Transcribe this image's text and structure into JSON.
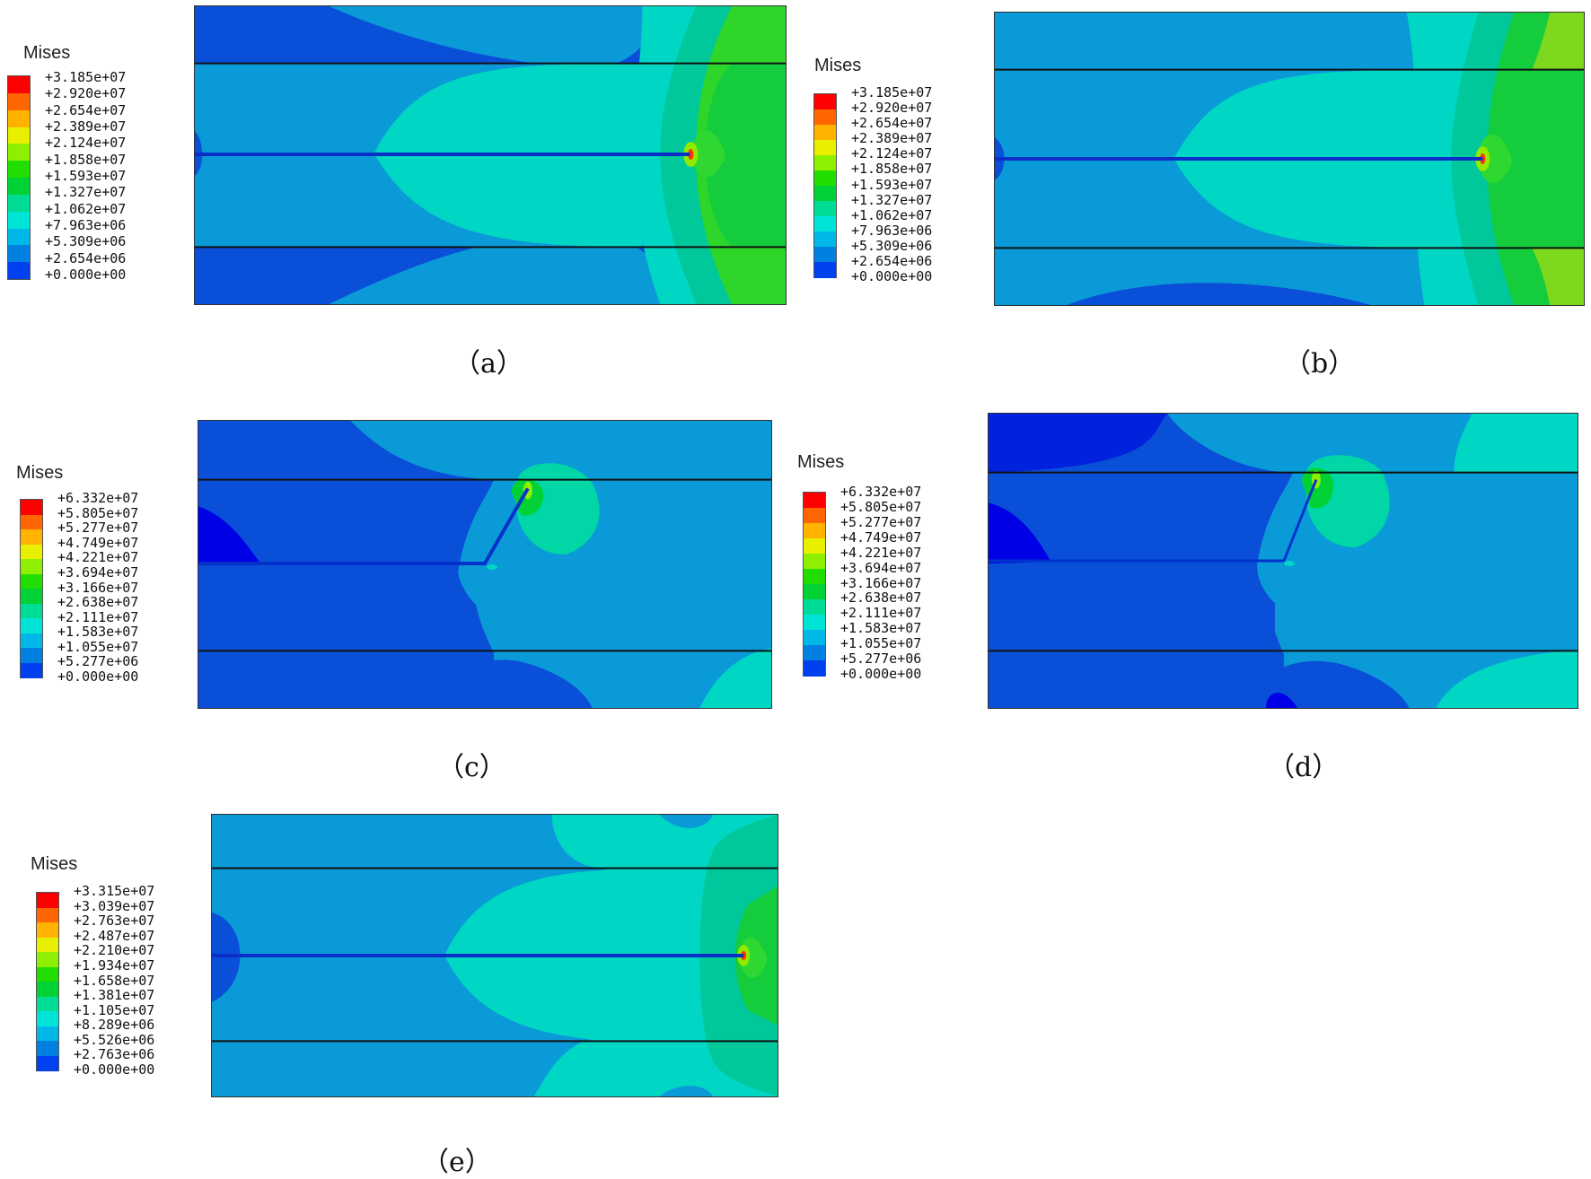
{
  "legend_colors": [
    "#ff0000",
    "#ff6600",
    "#ffb300",
    "#e8f000",
    "#8ef000",
    "#22dd00",
    "#00d236",
    "#00dc96",
    "#00e4d8",
    "#00b8e8",
    "#0080e0",
    "#0040ee",
    "#0000f0"
  ],
  "panels": [
    {
      "id": "a",
      "caption": "（a）",
      "legend": {
        "title": "Mises",
        "values": [
          "+3.185e+07",
          "+2.920e+07",
          "+2.654e+07",
          "+2.389e+07",
          "+2.124e+07",
          "+1.858e+07",
          "+1.593e+07",
          "+1.327e+07",
          "+1.062e+07",
          "+7.963e+06",
          "+5.309e+06",
          "+2.654e+06",
          "+0.000e+00"
        ]
      },
      "crack": "horizontal"
    },
    {
      "id": "b",
      "caption": "（b）",
      "legend": {
        "title": "Mises",
        "values": [
          "+3.185e+07",
          "+2.920e+07",
          "+2.654e+07",
          "+2.389e+07",
          "+2.124e+07",
          "+1.858e+07",
          "+1.593e+07",
          "+1.327e+07",
          "+1.062e+07",
          "+7.963e+06",
          "+5.309e+06",
          "+2.654e+06",
          "+0.000e+00"
        ]
      },
      "crack": "horizontal"
    },
    {
      "id": "c",
      "caption": "（c）",
      "legend": {
        "title": "Mises",
        "values": [
          "+6.332e+07",
          "+5.805e+07",
          "+5.277e+07",
          "+4.749e+07",
          "+4.221e+07",
          "+3.694e+07",
          "+3.166e+07",
          "+2.638e+07",
          "+2.111e+07",
          "+1.583e+07",
          "+1.055e+07",
          "+5.277e+06",
          "+0.000e+00"
        ]
      },
      "crack": "kinked"
    },
    {
      "id": "d",
      "caption": "（d）",
      "legend": {
        "title": "Mises",
        "values": [
          "+6.332e+07",
          "+5.805e+07",
          "+5.277e+07",
          "+4.749e+07",
          "+4.221e+07",
          "+3.694e+07",
          "+3.166e+07",
          "+2.638e+07",
          "+2.111e+07",
          "+1.583e+07",
          "+1.055e+07",
          "+5.277e+06",
          "+0.000e+00"
        ]
      },
      "crack": "kinked"
    },
    {
      "id": "e",
      "caption": "（e）",
      "legend": {
        "title": "Mises",
        "values": [
          "+3.315e+07",
          "+3.039e+07",
          "+2.763e+07",
          "+2.487e+07",
          "+2.210e+07",
          "+1.934e+07",
          "+1.658e+07",
          "+1.381e+07",
          "+1.105e+07",
          "+8.289e+06",
          "+5.526e+06",
          "+2.763e+06",
          "+0.000e+00"
        ]
      },
      "crack": "horizontal"
    }
  ]
}
